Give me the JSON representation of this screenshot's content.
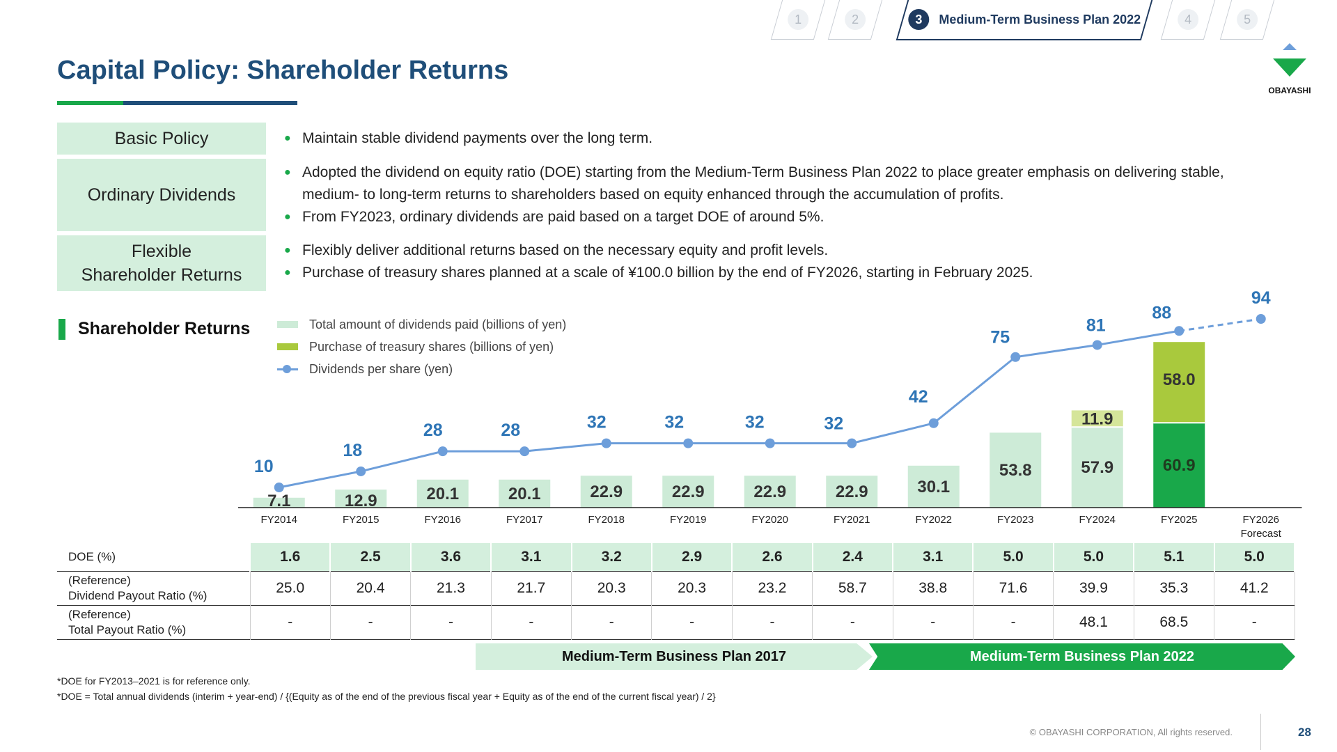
{
  "tabs": [
    {
      "num": "1",
      "label": ""
    },
    {
      "num": "2",
      "label": ""
    },
    {
      "num": "3",
      "label": "Medium-Term Business Plan 2022"
    },
    {
      "num": "4",
      "label": ""
    },
    {
      "num": "5",
      "label": ""
    }
  ],
  "logo_text": "OBAYASHI",
  "title": "Capital Policy: Shareholder Returns",
  "policy": {
    "basic": {
      "label": "Basic Policy",
      "items": [
        "Maintain stable dividend payments over the long term."
      ]
    },
    "ordinary": {
      "label": "Ordinary Dividends",
      "items": [
        "Adopted the dividend on equity ratio (DOE) starting from the Medium-Term Business Plan 2022 to place greater emphasis on delivering stable,",
        "medium- to long-term returns to shareholders based on equity enhanced through the accumulation of profits.",
        "From FY2023, ordinary dividends are paid based on a target DOE of around 5%."
      ]
    },
    "flexible": {
      "label_line1": "Flexible",
      "label_line2": "Shareholder Returns",
      "items": [
        "Flexibly deliver additional returns based on the necessary equity and profit levels.",
        "Purchase of treasury shares planned at a scale of ¥100.0 billion by the end of FY2026, starting in February 2025."
      ]
    }
  },
  "section_title": "Shareholder Returns",
  "legend": {
    "dividends": "Total amount of dividends paid (billions of yen)",
    "treasury": "Purchase of treasury shares (billions of yen)",
    "dps": "Dividends per share (yen)"
  },
  "chart_data": {
    "type": "bar",
    "categories": [
      "FY2014",
      "FY2015",
      "FY2016",
      "FY2017",
      "FY2018",
      "FY2019",
      "FY2020",
      "FY2021",
      "FY2022",
      "FY2023",
      "FY2024",
      "FY2025",
      "FY2026\nForecast"
    ],
    "series": [
      {
        "name": "Total amount of dividends paid (billions of yen)",
        "type": "bar",
        "values": [
          7.1,
          12.9,
          20.1,
          20.1,
          22.9,
          22.9,
          22.9,
          22.9,
          30.1,
          53.8,
          57.9,
          60.9,
          null
        ]
      },
      {
        "name": "Purchase of treasury shares (billions of yen)",
        "type": "bar-stacked",
        "values": [
          null,
          null,
          null,
          null,
          null,
          null,
          null,
          null,
          null,
          null,
          11.9,
          58.0,
          null
        ]
      },
      {
        "name": "Dividends per share (yen)",
        "type": "line",
        "values": [
          10,
          18,
          28,
          28,
          32,
          32,
          32,
          32,
          42,
          75,
          81,
          88,
          94
        ]
      }
    ],
    "forecast_from_index": 11,
    "colors": {
      "dividends": "#cdebd7",
      "dividends_fy2025": "#19a84a",
      "treasury": "#a9c93d",
      "treasury_light": "#d5e59a",
      "line": "#6d9eda",
      "line_label": "#2e75b6"
    }
  },
  "table": {
    "rows": [
      {
        "label": "DOE (%)",
        "values": [
          "1.6",
          "2.5",
          "3.6",
          "3.1",
          "3.2",
          "2.9",
          "2.6",
          "2.4",
          "3.1",
          "5.0",
          "5.0",
          "5.1",
          "5.0"
        ]
      },
      {
        "label_line1": "(Reference)",
        "label_line2": "Dividend Payout Ratio (%)",
        "values": [
          "25.0",
          "20.4",
          "21.3",
          "21.7",
          "20.3",
          "20.3",
          "23.2",
          "58.7",
          "38.8",
          "71.6",
          "39.9",
          "35.3",
          "41.2"
        ]
      },
      {
        "label_line1": "(Reference)",
        "label_line2": "Total Payout Ratio (%)",
        "values": [
          "-",
          "-",
          "-",
          "-",
          "-",
          "-",
          "-",
          "-",
          "-",
          "-",
          "48.1",
          "68.5",
          "-"
        ]
      }
    ]
  },
  "plans": {
    "plan2017": "Medium-Term Business Plan 2017",
    "plan2022": "Medium-Term Business Plan 2022"
  },
  "notes": [
    "*DOE for FY2013–2021 is for reference only.",
    "*DOE = Total annual dividends (interim + year-end) / {(Equity as of the end of the previous fiscal year + Equity as of the end of the current fiscal year) / 2}"
  ],
  "copyright": "© OBAYASHI CORPORATION, All rights reserved.",
  "page_number": "28"
}
